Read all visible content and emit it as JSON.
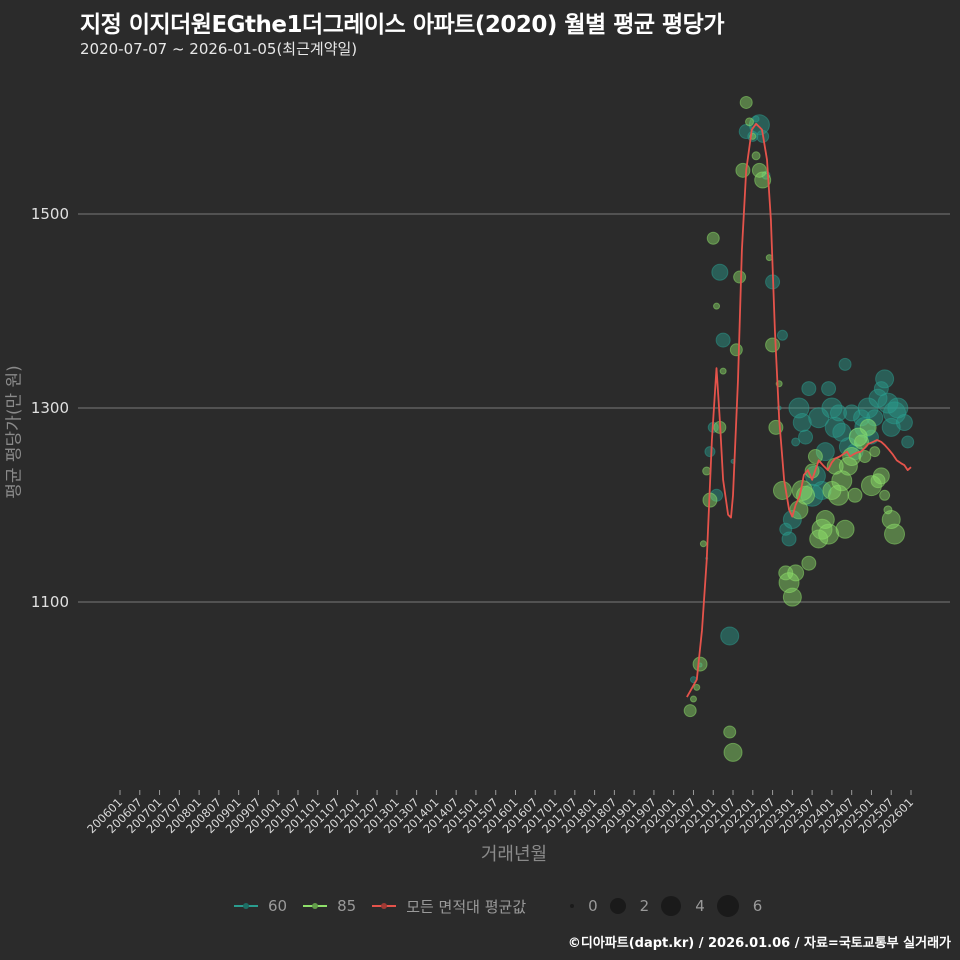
{
  "header": {
    "title": "지정 이지더원EGthe1더그레이스 아파트(2020) 월별 평균 평당가",
    "subtitle": "2020-07-07 ~ 2026-01-05(최근계약일)"
  },
  "footer": {
    "credit": "©디아파트(dapt.kr) / 2026.01.06 / 자료=국토교통부 실거래가"
  },
  "colors": {
    "background": "#2b2b2b",
    "grid": "#6a6a6a",
    "series_60": "#2a9d8f",
    "series_85": "#8ee06a",
    "avg_line": "#e5534b"
  },
  "legend": {
    "series": [
      {
        "label": "60",
        "color": "#2a9d8f"
      },
      {
        "label": "85",
        "color": "#8ee06a"
      },
      {
        "label": "모든 면적대 평균값",
        "color": "#e5534b"
      }
    ],
    "sizes": [
      {
        "label": "0",
        "diameter": 4
      },
      {
        "label": "2",
        "diameter": 16
      },
      {
        "label": "4",
        "diameter": 20
      },
      {
        "label": "6",
        "diameter": 22
      }
    ]
  },
  "chart_data": {
    "type": "scatter",
    "title": "지정 이지더원EGthe1더그레이스 아파트(2020) 월별 평균 평당가",
    "subtitle": "2020-07-07 ~ 2026-01-05(최근계약일)",
    "xlabel": "거래년월",
    "ylabel": "평균 평당가(만 원)",
    "ylim": [
      910,
      1640
    ],
    "yticks": [
      1100,
      1300,
      1500
    ],
    "grid": true,
    "legend_position": "bottom",
    "xticks": [
      "200601",
      "200607",
      "200701",
      "200707",
      "200801",
      "200807",
      "200901",
      "200907",
      "201001",
      "201007",
      "201101",
      "201107",
      "201201",
      "201207",
      "201301",
      "201307",
      "201401",
      "201407",
      "201501",
      "201507",
      "201601",
      "201607",
      "201701",
      "201707",
      "201801",
      "201807",
      "201901",
      "201907",
      "202001",
      "202007",
      "202101",
      "202107",
      "202201",
      "202207",
      "202301",
      "202307",
      "202401",
      "202407",
      "202501",
      "202507",
      "202601"
    ],
    "x_unit": "month index from 200601",
    "series": [
      {
        "name": "모든 면적대 평균값",
        "kind": "line",
        "points": [
          [
            172,
            1002
          ],
          [
            175,
            1020
          ],
          [
            176.6,
            1071
          ],
          [
            178,
            1143
          ],
          [
            179.6,
            1267
          ],
          [
            181,
            1341
          ],
          [
            182,
            1288
          ],
          [
            183,
            1226
          ],
          [
            184.5,
            1190
          ],
          [
            185.4,
            1187
          ],
          [
            186,
            1210
          ],
          [
            187.5,
            1329
          ],
          [
            188.7,
            1463
          ],
          [
            190,
            1545
          ],
          [
            191.7,
            1587
          ],
          [
            193,
            1593
          ],
          [
            194.8,
            1587
          ],
          [
            196.3,
            1556
          ],
          [
            197.5,
            1494
          ],
          [
            198.7,
            1380
          ],
          [
            200,
            1288
          ],
          [
            201.5,
            1226
          ],
          [
            203,
            1195
          ],
          [
            204,
            1188
          ],
          [
            205,
            1200
          ],
          [
            206.3,
            1210
          ],
          [
            207.5,
            1231
          ],
          [
            208.7,
            1236
          ],
          [
            210,
            1226
          ],
          [
            211,
            1236
          ],
          [
            212,
            1246
          ],
          [
            213.3,
            1241
          ],
          [
            214.8,
            1236
          ],
          [
            216,
            1244
          ],
          [
            217,
            1248
          ],
          [
            218.4,
            1250
          ],
          [
            219.7,
            1253
          ],
          [
            220.6,
            1255
          ],
          [
            221.5,
            1250
          ],
          [
            222.4,
            1252
          ],
          [
            223.6,
            1254
          ],
          [
            224.8,
            1255
          ],
          [
            226,
            1259
          ],
          [
            227,
            1263
          ],
          [
            228.5,
            1265
          ],
          [
            229.7,
            1267
          ],
          [
            231,
            1265
          ],
          [
            232,
            1262
          ],
          [
            233.3,
            1257
          ],
          [
            234.5,
            1252
          ],
          [
            235.7,
            1246
          ],
          [
            237,
            1243
          ],
          [
            238,
            1241
          ],
          [
            239,
            1236
          ],
          [
            240,
            1239
          ]
        ]
      },
      {
        "name": "60",
        "kind": "bubble",
        "points": [
          [
            174,
            1020,
            3
          ],
          [
            176,
            1035,
            2
          ],
          [
            178,
            1145,
            1
          ],
          [
            179,
            1255,
            5
          ],
          [
            180,
            1280,
            5
          ],
          [
            181,
            1210,
            6
          ],
          [
            182,
            1440,
            8
          ],
          [
            183,
            1370,
            7
          ],
          [
            185,
            1065,
            9
          ],
          [
            186,
            1245,
            2
          ],
          [
            190,
            1585,
            7
          ],
          [
            192,
            1580,
            5
          ],
          [
            193,
            1598,
            3
          ],
          [
            194,
            1592,
            10
          ],
          [
            195,
            1580,
            6
          ],
          [
            196,
            1540,
            4
          ],
          [
            198,
            1430,
            7
          ],
          [
            200,
            1300,
            2
          ],
          [
            201,
            1375,
            5
          ],
          [
            202,
            1175,
            6
          ],
          [
            203,
            1165,
            7
          ],
          [
            204,
            1185,
            9
          ],
          [
            205,
            1265,
            4
          ],
          [
            206,
            1300,
            10
          ],
          [
            207,
            1285,
            9
          ],
          [
            208,
            1270,
            7
          ],
          [
            209,
            1320,
            7
          ],
          [
            210,
            1210,
            11
          ],
          [
            211,
            1230,
            10
          ],
          [
            212,
            1290,
            10
          ],
          [
            213,
            1215,
            9
          ],
          [
            214,
            1255,
            9
          ],
          [
            215,
            1320,
            7
          ],
          [
            216,
            1300,
            10
          ],
          [
            217,
            1280,
            10
          ],
          [
            218,
            1295,
            8
          ],
          [
            219,
            1275,
            9
          ],
          [
            220,
            1345,
            6
          ],
          [
            221,
            1260,
            9
          ],
          [
            222,
            1295,
            8
          ],
          [
            223,
            1255,
            8
          ],
          [
            224,
            1270,
            9
          ],
          [
            225,
            1290,
            8
          ],
          [
            226,
            1280,
            10
          ],
          [
            227,
            1300,
            10
          ],
          [
            228,
            1270,
            7
          ],
          [
            229,
            1290,
            8
          ],
          [
            230,
            1310,
            9
          ],
          [
            231,
            1320,
            7
          ],
          [
            232,
            1330,
            9
          ],
          [
            233,
            1305,
            10
          ],
          [
            234,
            1280,
            9
          ],
          [
            235,
            1295,
            11
          ],
          [
            236,
            1300,
            10
          ],
          [
            238,
            1285,
            8
          ],
          [
            239,
            1265,
            6
          ]
        ]
      },
      {
        "name": "85",
        "kind": "bubble",
        "points": [
          [
            173,
            988,
            6
          ],
          [
            174,
            1000,
            3
          ],
          [
            175,
            1012,
            3
          ],
          [
            176,
            1036,
            7
          ],
          [
            177,
            1160,
            3
          ],
          [
            178,
            1235,
            4
          ],
          [
            179,
            1205,
            7
          ],
          [
            180,
            1475,
            6
          ],
          [
            181,
            1405,
            3
          ],
          [
            182,
            1280,
            6
          ],
          [
            183,
            1338,
            3
          ],
          [
            185,
            966,
            6
          ],
          [
            186,
            945,
            9
          ],
          [
            187,
            1360,
            6
          ],
          [
            188,
            1435,
            6
          ],
          [
            189,
            1545,
            7
          ],
          [
            190,
            1615,
            6
          ],
          [
            191,
            1595,
            4
          ],
          [
            192,
            1580,
            3
          ],
          [
            193,
            1560,
            4
          ],
          [
            194,
            1545,
            7
          ],
          [
            195,
            1535,
            8
          ],
          [
            197,
            1455,
            3
          ],
          [
            198,
            1365,
            7
          ],
          [
            199,
            1280,
            7
          ],
          [
            200,
            1325,
            3
          ],
          [
            201,
            1215,
            9
          ],
          [
            202,
            1130,
            7
          ],
          [
            203,
            1120,
            10
          ],
          [
            204,
            1105,
            9
          ],
          [
            205,
            1130,
            8
          ],
          [
            206,
            1195,
            9
          ],
          [
            207,
            1215,
            10
          ],
          [
            208,
            1210,
            9
          ],
          [
            209,
            1140,
            7
          ],
          [
            210,
            1235,
            7
          ],
          [
            211,
            1250,
            7
          ],
          [
            212,
            1165,
            9
          ],
          [
            213,
            1175,
            10
          ],
          [
            214,
            1185,
            9
          ],
          [
            215,
            1170,
            10
          ],
          [
            216,
            1215,
            9
          ],
          [
            217,
            1240,
            8
          ],
          [
            218,
            1210,
            10
          ],
          [
            219,
            1225,
            10
          ],
          [
            220,
            1175,
            9
          ],
          [
            221,
            1240,
            9
          ],
          [
            222,
            1250,
            9
          ],
          [
            223,
            1210,
            7
          ],
          [
            224,
            1270,
            9
          ],
          [
            225,
            1265,
            7
          ],
          [
            226,
            1250,
            6
          ],
          [
            227,
            1280,
            8
          ],
          [
            228,
            1220,
            10
          ],
          [
            229,
            1255,
            5
          ],
          [
            230,
            1225,
            7
          ],
          [
            231,
            1230,
            8
          ],
          [
            232,
            1210,
            5
          ],
          [
            233,
            1195,
            4
          ],
          [
            234,
            1185,
            9
          ],
          [
            235,
            1170,
            10
          ]
        ]
      }
    ]
  },
  "axis": {
    "y_title": "평균 평당가(만 원)",
    "x_title": "거래년월"
  }
}
